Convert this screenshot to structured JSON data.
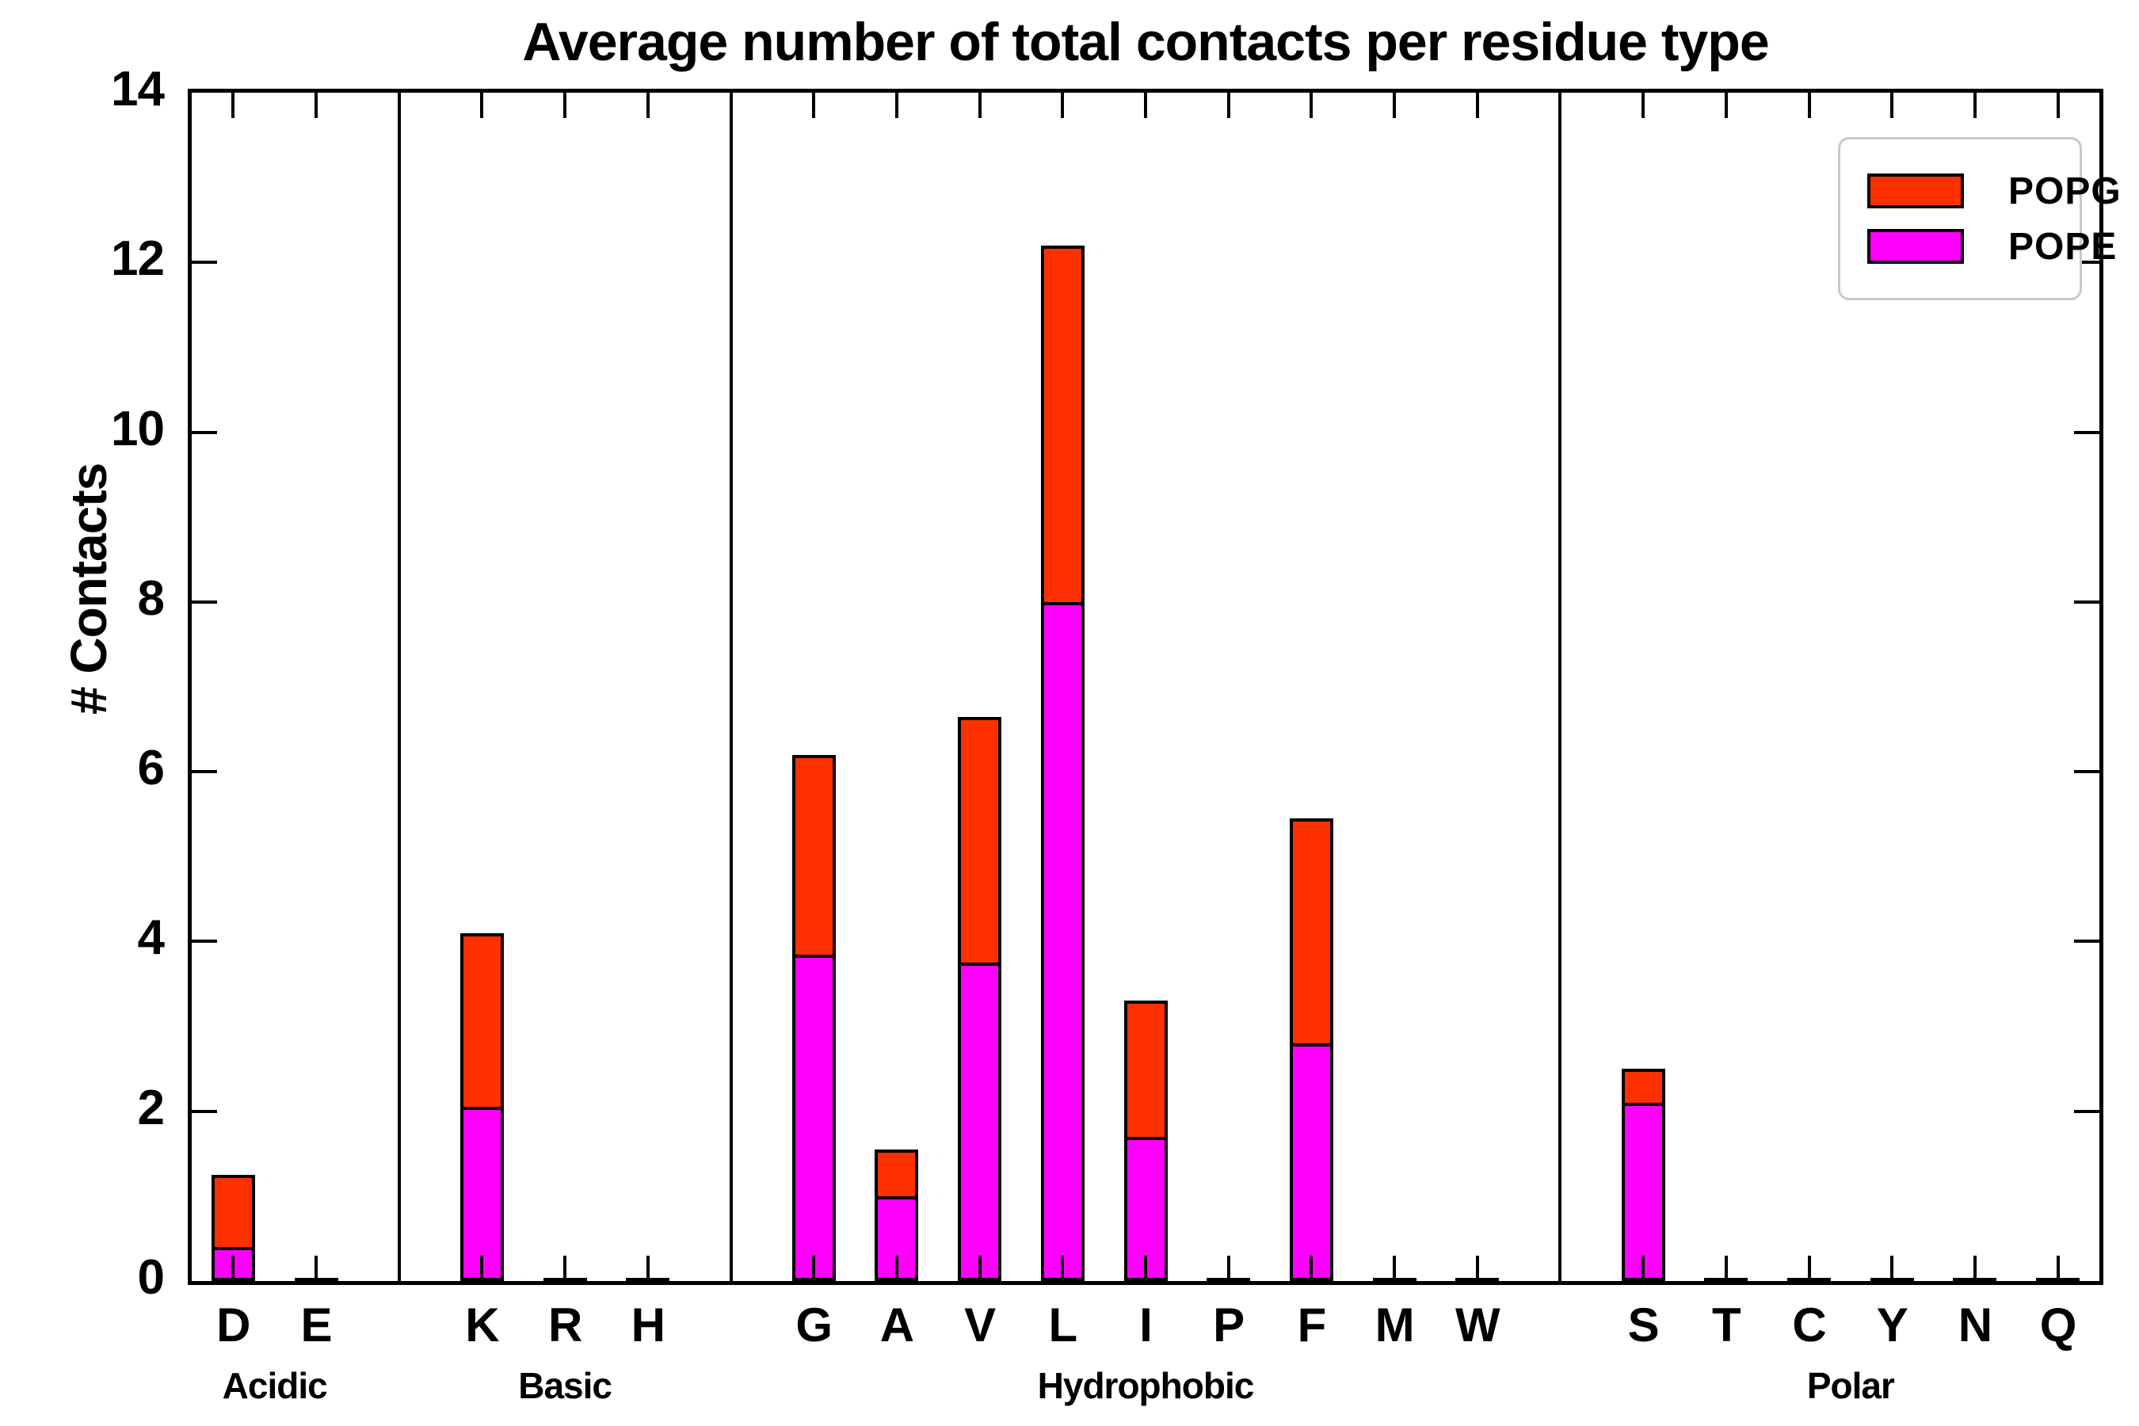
{
  "title": "Average number of total contacts per residue type",
  "chart_data": {
    "type": "bar",
    "stacked": true,
    "title": "Average number of total contacts per residue type",
    "xlabel": "",
    "ylabel": "# Contacts",
    "ylim": [
      0,
      14
    ],
    "yticks": [
      0,
      2,
      4,
      6,
      8,
      10,
      12,
      14
    ],
    "grid": false,
    "categories": [
      "D",
      "E",
      "K",
      "R",
      "H",
      "G",
      "A",
      "V",
      "L",
      "I",
      "P",
      "F",
      "M",
      "W",
      "S",
      "T",
      "C",
      "Y",
      "N",
      "Q"
    ],
    "groups": [
      {
        "label": "Acidic",
        "categories": [
          "D",
          "E"
        ]
      },
      {
        "label": "Basic",
        "categories": [
          "K",
          "R",
          "H"
        ]
      },
      {
        "label": "Hydrophobic",
        "categories": [
          "G",
          "A",
          "V",
          "L",
          "I",
          "P",
          "F",
          "M",
          "W"
        ]
      },
      {
        "label": "Polar",
        "categories": [
          "S",
          "T",
          "C",
          "Y",
          "N",
          "Q"
        ]
      }
    ],
    "series": [
      {
        "name": "POPG",
        "color": "#ff3000",
        "values": [
          0.85,
          0,
          2.05,
          0,
          0,
          2.35,
          0.55,
          2.9,
          4.2,
          1.6,
          0,
          2.65,
          0,
          0,
          0.4,
          0,
          0,
          0,
          0,
          0
        ]
      },
      {
        "name": "POPE",
        "color": "#ff00ff",
        "values": [
          0.4,
          0,
          2.05,
          0,
          0,
          3.85,
          1.0,
          3.75,
          8.0,
          1.7,
          0,
          2.8,
          0,
          0,
          2.1,
          0,
          0,
          0,
          0,
          0
        ]
      }
    ],
    "stack_order_bottom_to_top": [
      "POPE",
      "POPG"
    ],
    "totals": [
      1.25,
      0,
      4.1,
      0,
      0,
      6.2,
      1.55,
      6.65,
      12.2,
      3.3,
      0,
      5.45,
      0,
      0,
      2.5,
      0,
      0,
      0,
      0,
      0
    ],
    "legend": {
      "position": "upper right",
      "entries": [
        "POPG",
        "POPE"
      ]
    }
  },
  "colors": {
    "popg": "#ff3000",
    "pope": "#ff00ff",
    "frame": "#000000",
    "background": "#ffffff",
    "legend_border": "#c9c9c9"
  }
}
